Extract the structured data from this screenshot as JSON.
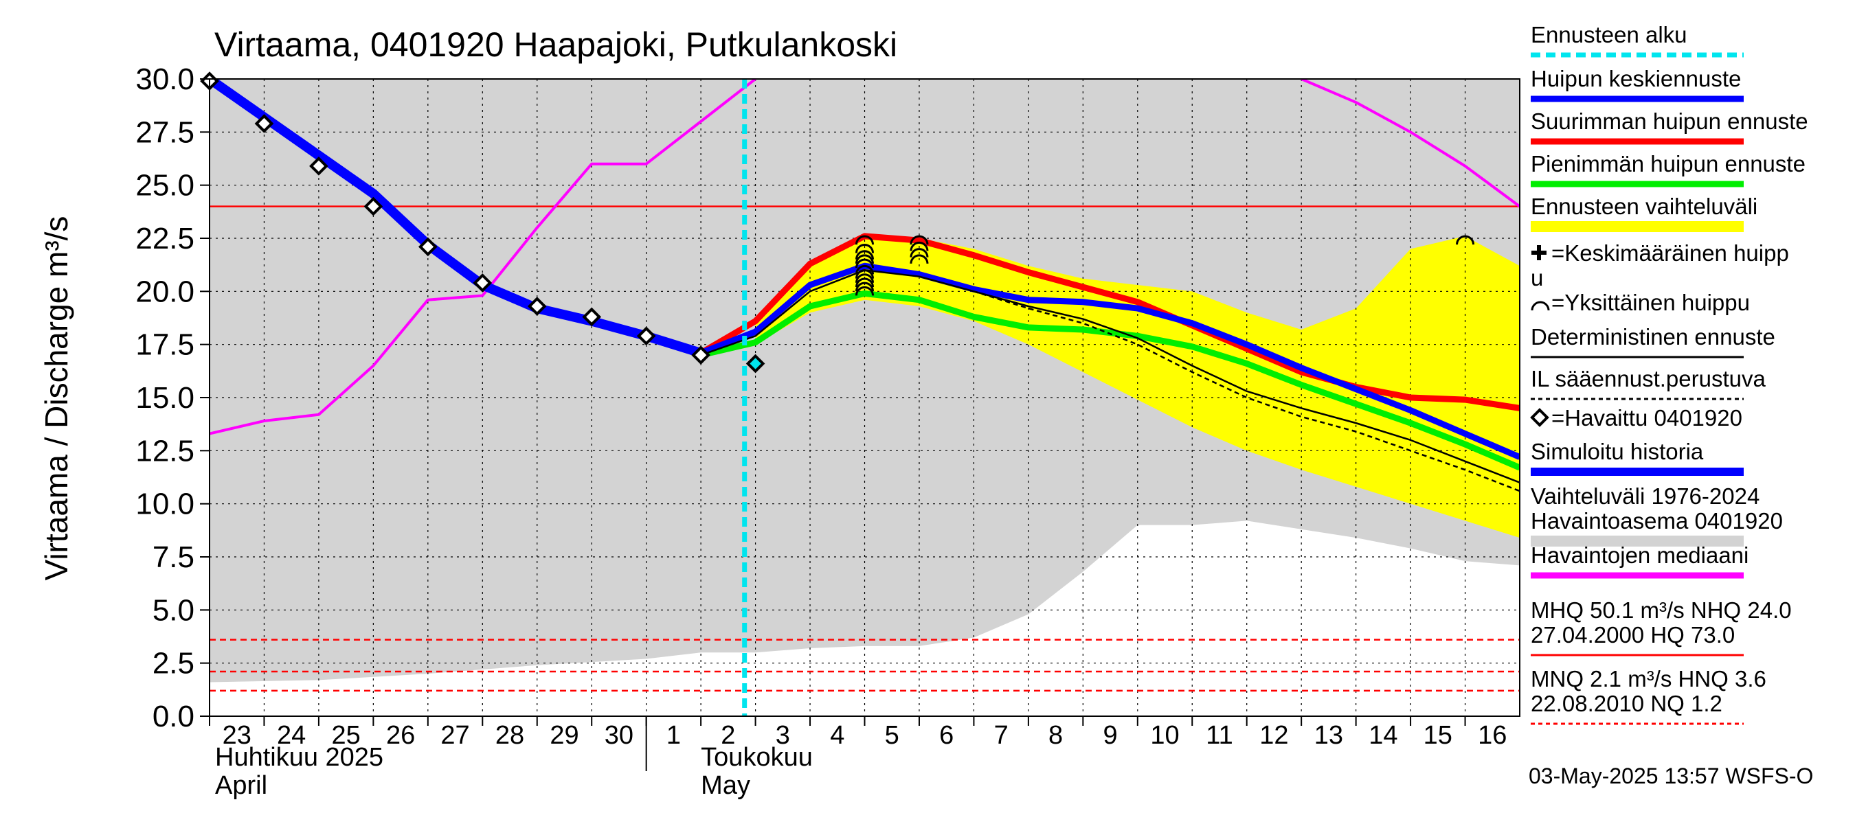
{
  "chart_data": {
    "type": "line",
    "title": "Virtaama, 0401920 Haapajoki, Putkulankoski",
    "ylabel": "Virtaama / Discharge   m³/s",
    "ylim": [
      0,
      30
    ],
    "yticks": [
      "0.0",
      "2.5",
      "5.0",
      "7.5",
      "10.0",
      "12.5",
      "15.0",
      "17.5",
      "20.0",
      "22.5",
      "25.0",
      "27.5",
      "30.0"
    ],
    "x_range": [
      23,
      47
    ],
    "x_ticks": [
      {
        "x": 23,
        "label": "23"
      },
      {
        "x": 24,
        "label": "24"
      },
      {
        "x": 25,
        "label": "25"
      },
      {
        "x": 26,
        "label": "26"
      },
      {
        "x": 27,
        "label": "27"
      },
      {
        "x": 28,
        "label": "28"
      },
      {
        "x": 29,
        "label": "29"
      },
      {
        "x": 30,
        "label": "30"
      },
      {
        "x": 31,
        "label": "1"
      },
      {
        "x": 32,
        "label": "2"
      },
      {
        "x": 33,
        "label": "3"
      },
      {
        "x": 34,
        "label": "4"
      },
      {
        "x": 35,
        "label": "5"
      },
      {
        "x": 36,
        "label": "6"
      },
      {
        "x": 37,
        "label": "7"
      },
      {
        "x": 38,
        "label": "8"
      },
      {
        "x": 39,
        "label": "9"
      },
      {
        "x": 40,
        "label": "10"
      },
      {
        "x": 41,
        "label": "11"
      },
      {
        "x": 42,
        "label": "12"
      },
      {
        "x": 43,
        "label": "13"
      },
      {
        "x": 44,
        "label": "14"
      },
      {
        "x": 45,
        "label": "15"
      },
      {
        "x": 46,
        "label": "16"
      }
    ],
    "month_labels": [
      {
        "x": 23,
        "line1": "Huhtikuu  2025",
        "line2": "April"
      },
      {
        "x": 31.9,
        "line1": "Toukokuu",
        "line2": "May"
      }
    ],
    "forecast_start_x": 32.8,
    "series": [
      {
        "name": "Vaihteluväli 1976-2024 (upper)",
        "color": "#d3d3d3",
        "x": [
          23,
          33,
          40,
          41,
          43,
          44,
          46,
          47
        ],
        "y": [
          30,
          30,
          30,
          30,
          30,
          30,
          30,
          30
        ]
      },
      {
        "name": "Vaihteluväli 1976-2024 (lower)",
        "color": "#d3d3d3",
        "x": [
          23,
          25,
          27,
          29,
          31,
          32,
          33,
          34,
          35,
          36,
          37,
          38,
          39,
          40,
          41,
          42,
          43,
          44,
          45,
          46,
          47
        ],
        "y": [
          1.6,
          1.7,
          2.0,
          2.4,
          2.7,
          3.0,
          3.0,
          3.2,
          3.3,
          3.3,
          3.7,
          4.8,
          6.8,
          9.0,
          9.0,
          9.2,
          8.8,
          8.4,
          7.9,
          7.3,
          7.1
        ]
      },
      {
        "name": "Ennusteen vaihteluväli (upper)",
        "color": "#ffff00",
        "x": [
          33,
          34,
          35,
          36,
          37,
          38,
          39,
          40,
          41,
          42,
          43,
          44,
          45,
          46,
          47
        ],
        "y": [
          18.5,
          21.3,
          22.6,
          22.5,
          22.0,
          21.2,
          20.6,
          20.3,
          20.0,
          19.0,
          18.2,
          19.2,
          22.0,
          22.6,
          21.2
        ]
      },
      {
        "name": "Ennusteen vaihteluväli (lower)",
        "color": "#ffff00",
        "x": [
          33,
          34,
          35,
          36,
          37,
          38,
          39,
          40,
          41,
          42,
          43,
          44,
          45,
          46,
          47
        ],
        "y": [
          17.5,
          19.0,
          19.6,
          19.3,
          18.6,
          17.5,
          16.2,
          14.9,
          13.6,
          12.5,
          11.6,
          10.8,
          10.0,
          9.2,
          8.4
        ]
      },
      {
        "name": "Havaintojen mediaani",
        "color": "#ff00ff",
        "x": [
          23,
          24,
          25,
          26,
          27,
          28,
          29,
          30,
          31,
          32,
          33
        ],
        "y": [
          13.3,
          13.9,
          14.2,
          16.5,
          19.6,
          19.8,
          23.0,
          26.0,
          26.0,
          28.0,
          30.0
        ]
      },
      {
        "name": "Havaintojen mediaani (late)",
        "color": "#ff00ff",
        "x": [
          43,
          44,
          45,
          46,
          47
        ],
        "y": [
          30.0,
          28.9,
          27.5,
          25.9,
          24.0
        ]
      },
      {
        "name": "Simuloitu historia",
        "color": "#0000ff",
        "x": [
          23,
          24,
          25,
          26,
          27,
          28,
          29,
          30,
          31,
          32
        ],
        "y": [
          30.0,
          28.2,
          26.4,
          24.6,
          22.2,
          20.3,
          19.2,
          18.6,
          17.9,
          17.1
        ]
      },
      {
        "name": "Suurimman huipun ennuste",
        "color": "#ff0000",
        "x": [
          32,
          33,
          34,
          35,
          36,
          37,
          38,
          39,
          40,
          41,
          42,
          43,
          44,
          45,
          46,
          47
        ],
        "y": [
          17.1,
          18.6,
          21.3,
          22.6,
          22.4,
          21.7,
          20.9,
          20.2,
          19.5,
          18.4,
          17.3,
          16.2,
          15.5,
          15.0,
          14.9,
          14.5
        ]
      },
      {
        "name": "Pienimmän huipun ennuste",
        "color": "#00ee00",
        "x": [
          32,
          33,
          34,
          35,
          36,
          37,
          38,
          39,
          40,
          41,
          42,
          43,
          44,
          45,
          46,
          47
        ],
        "y": [
          17.0,
          17.6,
          19.3,
          19.9,
          19.6,
          18.8,
          18.3,
          18.2,
          17.9,
          17.4,
          16.6,
          15.6,
          14.7,
          13.8,
          12.8,
          11.7
        ]
      },
      {
        "name": "Huipun keskiennuste",
        "color": "#0000ff",
        "x": [
          32,
          33,
          34,
          35,
          36,
          37,
          38,
          39,
          40,
          41,
          42,
          43,
          44,
          45,
          46,
          47
        ],
        "y": [
          17.1,
          18.1,
          20.3,
          21.2,
          20.8,
          20.1,
          19.6,
          19.5,
          19.2,
          18.5,
          17.5,
          16.4,
          15.4,
          14.4,
          13.3,
          12.2
        ]
      },
      {
        "name": "Deterministinen ennuste",
        "color": "#000000",
        "x": [
          32,
          33,
          34,
          35,
          36,
          37,
          38,
          39,
          40,
          41,
          42,
          43,
          44,
          45,
          46,
          47
        ],
        "y": [
          17.0,
          17.9,
          20.0,
          21.0,
          20.7,
          20.0,
          19.3,
          18.7,
          17.8,
          16.5,
          15.3,
          14.5,
          13.8,
          13.0,
          12.0,
          11.0
        ]
      },
      {
        "name": "IL sääennust.perustuva",
        "color": "#000000",
        "x": [
          37,
          38,
          39,
          40,
          41,
          42,
          43,
          44,
          45,
          46,
          47
        ],
        "y": [
          20.0,
          19.2,
          18.5,
          17.5,
          16.2,
          15.0,
          14.1,
          13.4,
          12.5,
          11.6,
          10.6
        ]
      }
    ],
    "observed": {
      "name": "Havaittu 0401920",
      "x": [
        23,
        24,
        25,
        26,
        27,
        28,
        29,
        30,
        31,
        32,
        33
      ],
      "y": [
        29.9,
        27.9,
        25.9,
        24.0,
        22.1,
        20.4,
        19.3,
        18.8,
        17.9,
        17.0,
        16.6
      ]
    },
    "single_peaks": {
      "name": "Yksittäinen huippu",
      "x": [
        35,
        35,
        35,
        35,
        35,
        35,
        35,
        35,
        35,
        35,
        35,
        36,
        36,
        36,
        36,
        46
      ],
      "y": [
        22.4,
        22.0,
        21.7,
        21.5,
        21.3,
        21.0,
        20.8,
        20.6,
        20.4,
        20.2,
        20.0,
        22.4,
        22.1,
        21.8,
        21.5,
        22.4
      ]
    },
    "reference_lines": [
      {
        "name": "NHQ",
        "y": 24.0,
        "color": "#ff0000",
        "style": "solid"
      },
      {
        "name": "HNQ",
        "y": 3.6,
        "color": "#ff0000",
        "style": "dashed"
      },
      {
        "name": "MNQ",
        "y": 2.1,
        "color": "#ff0000",
        "style": "dashed"
      },
      {
        "name": "NQ",
        "y": 1.2,
        "color": "#ff0000",
        "style": "dashed"
      }
    ],
    "legend": [
      {
        "label": "Ennusteen alku",
        "color": "#00e5ee",
        "style": "dashed"
      },
      {
        "label": "Huipun keskiennuste",
        "color": "#0000ff",
        "style": "line"
      },
      {
        "label": "Suurimman huipun ennuste",
        "color": "#ff0000",
        "style": "line"
      },
      {
        "label": "Pienimmän huipun ennuste",
        "color": "#00ee00",
        "style": "line"
      },
      {
        "label": "Ennusteen vaihteluväli",
        "color": "#ffff00",
        "style": "band"
      },
      {
        "label": "=Keskimääräinen huipp",
        "label2": "u",
        "color": "#000000",
        "style": "plus"
      },
      {
        "label": "=Yksittäinen huippu",
        "color": "#000000",
        "style": "arc"
      },
      {
        "label": "Deterministinen ennuste",
        "color": "#000000",
        "style": "thin"
      },
      {
        "label": "IL sääennust.perustuva",
        "color": "#000000",
        "style": "dotted"
      },
      {
        "label": "=Havaittu 0401920",
        "color": "#000000",
        "style": "diamond"
      },
      {
        "label": "Simuloitu historia",
        "color": "#0000ff",
        "style": "thick"
      },
      {
        "label": "Vaihteluväli 1976-2024",
        "label2": " Havaintoasema 0401920",
        "color": "#d3d3d3",
        "style": "band"
      },
      {
        "label": "Havaintojen mediaani",
        "color": "#ff00ff",
        "style": "line"
      },
      {
        "label": "MHQ 50.1 m³/s NHQ 24.0",
        "label2": "27.04.2000 HQ 73.0",
        "color": "#ff0000",
        "style": "solid-ref"
      },
      {
        "label": "MNQ  2.1 m³/s HNQ  3.6",
        "label2": "22.08.2010 NQ  1.2",
        "color": "#ff0000",
        "style": "dashed-ref"
      }
    ],
    "timestamp": "03-May-2025 13:57 WSFS-O",
    "colors": {
      "grid": "#000000",
      "range_band": "#d3d3d3",
      "forecast_band": "#ffff00",
      "forecast_start": "#00e5ee",
      "observed_fill": "#ffffff",
      "observed_stroke": "#000000"
    }
  }
}
